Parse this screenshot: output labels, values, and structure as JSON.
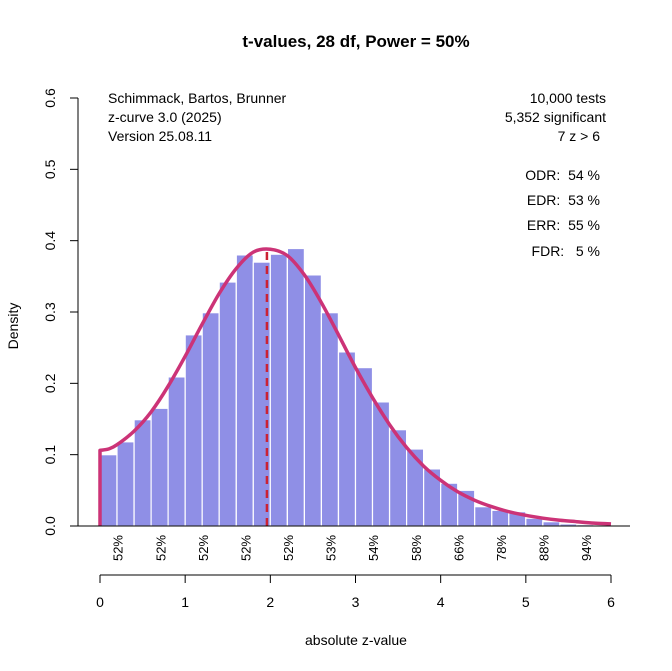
{
  "chart_data": {
    "type": "bar",
    "title": "t-values, 28 df, Power = 50%",
    "xlabel": "absolute z-value",
    "ylabel": "Density",
    "xlim": [
      0,
      6
    ],
    "ylim": [
      0,
      0.6
    ],
    "x_ticks": [
      "0",
      "1",
      "2",
      "3",
      "4",
      "5",
      "6"
    ],
    "y_ticks": [
      "0.0",
      "0.1",
      "0.2",
      "0.3",
      "0.4",
      "0.5",
      "0.6"
    ],
    "grid": false,
    "histogram": {
      "name": "observed z-values",
      "bin_width": 0.2,
      "bin_starts": [
        0.0,
        0.2,
        0.4,
        0.6,
        0.8,
        1.0,
        1.2,
        1.4,
        1.6,
        1.8,
        2.0,
        2.2,
        2.4,
        2.6,
        2.8,
        3.0,
        3.2,
        3.4,
        3.6,
        3.8,
        4.0,
        4.2,
        4.4,
        4.6,
        4.8,
        5.0,
        5.2,
        5.4,
        5.6,
        5.8
      ],
      "density": [
        0.1,
        0.118,
        0.149,
        0.165,
        0.209,
        0.268,
        0.299,
        0.342,
        0.38,
        0.37,
        0.381,
        0.389,
        0.352,
        0.299,
        0.244,
        0.222,
        0.174,
        0.135,
        0.108,
        0.08,
        0.06,
        0.05,
        0.027,
        0.022,
        0.02,
        0.011,
        0.006,
        0.003,
        0.002,
        0.001
      ],
      "color": "#8f8fe6"
    },
    "density_curve": {
      "name": "fitted density",
      "x": [
        0.0,
        0.1,
        0.2,
        0.4,
        0.6,
        0.8,
        1.0,
        1.2,
        1.4,
        1.6,
        1.8,
        2.0,
        2.2,
        2.4,
        2.6,
        2.8,
        3.0,
        3.2,
        3.4,
        3.6,
        3.8,
        4.0,
        4.2,
        4.4,
        4.6,
        4.8,
        5.0,
        5.2,
        5.4,
        5.6,
        5.8,
        6.0
      ],
      "y": [
        0.106,
        0.108,
        0.114,
        0.133,
        0.16,
        0.196,
        0.238,
        0.283,
        0.326,
        0.361,
        0.384,
        0.388,
        0.379,
        0.352,
        0.313,
        0.268,
        0.222,
        0.18,
        0.142,
        0.11,
        0.084,
        0.064,
        0.048,
        0.036,
        0.027,
        0.02,
        0.015,
        0.011,
        0.008,
        0.006,
        0.004,
        0.003
      ],
      "color": "#cc3377"
    },
    "threshold_line": {
      "x": 1.96,
      "style": "dashed",
      "color": "#cc2233"
    },
    "power_labels": {
      "x": [
        0.25,
        0.75,
        1.25,
        1.75,
        2.25,
        2.75,
        3.25,
        3.75,
        4.25,
        4.75,
        5.25,
        5.75
      ],
      "labels": [
        "52%",
        "52%",
        "52%",
        "52%",
        "52%",
        "53%",
        "54%",
        "58%",
        "66%",
        "78%",
        "88%",
        "94%"
      ]
    },
    "annotations": {
      "left": [
        "Schimmack, Bartos, Brunner",
        "z-curve 3.0 (2025)",
        "Version 25.08.11"
      ],
      "right": [
        "10,000 tests",
        "5,352 significant",
        "7 z > 6"
      ],
      "stats": [
        "ODR:  54 %",
        "EDR:  53 %",
        "ERR:  55 %",
        "FDR:   5 %"
      ]
    }
  }
}
